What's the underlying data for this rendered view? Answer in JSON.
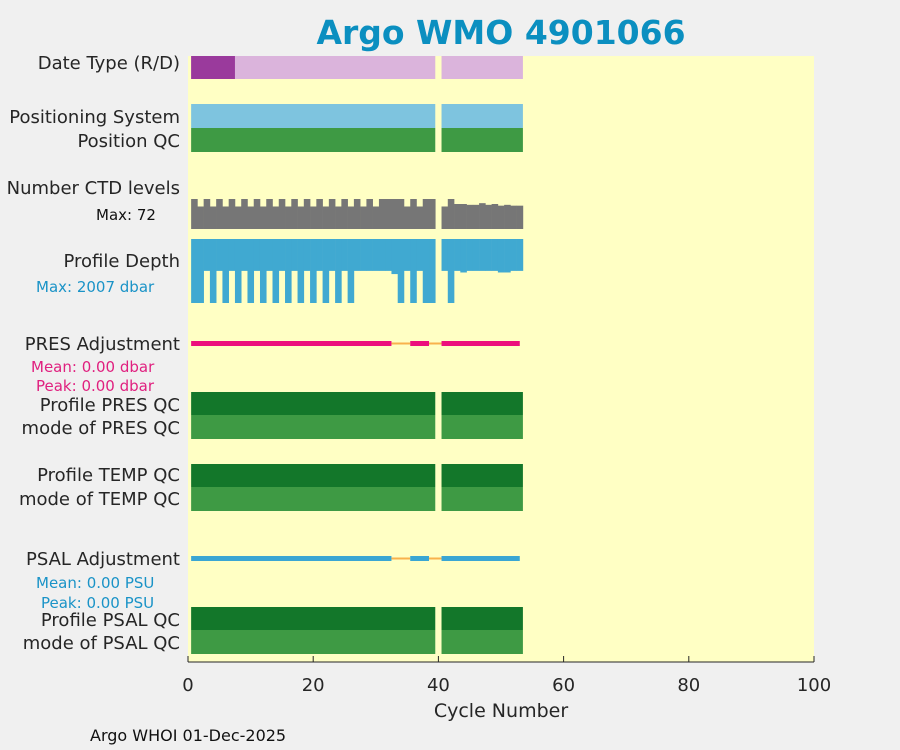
{
  "chart_data": {
    "type": "status-timeline",
    "title": "Argo WMO 4901066",
    "xlabel": "Cycle Number",
    "xlim": [
      0,
      100
    ],
    "xticks": [
      0,
      20,
      40,
      60,
      80,
      100
    ],
    "xtick_labels": [
      "0",
      "20",
      "40",
      "60",
      "80",
      "100"
    ],
    "footer": "Argo WHOI 01-Dec-2025",
    "colors": {
      "title": "#0b8fc0",
      "plot_bg": "#ffffc4",
      "figure_bg": "#f0f0f0",
      "good_qc": "#3e9a44",
      "dark_qc": "#13772a",
      "positioning": "#7ec4df",
      "date_realtime": "#dbb4dc",
      "date_delayed": "#9a3a9c",
      "ctd": "#767676",
      "depth": "#40a9d1",
      "pres_adj": "#ec0f7d",
      "psal_adj": "#3aa6d3",
      "adj_gap": "#f8b24c",
      "pink_text": "#e0207f",
      "blue_text": "#1a93c7",
      "axis": "#262626"
    },
    "cycle_span": [
      0.5,
      53.5
    ],
    "missing_cycles": [
      40
    ],
    "labels": {
      "date_type": "Date Type (R/D)",
      "positioning_system": "Positioning System",
      "position_qc": "Position QC",
      "ctd_levels": "Number CTD levels",
      "ctd_max": "Max: 72",
      "profile_depth": "Profile Depth",
      "depth_max": "Max: 2007 dbar",
      "pres_adjustment": "PRES Adjustment",
      "pres_mean": "Mean: 0.00 dbar",
      "pres_peak": "Peak: 0.00 dbar",
      "profile_pres_qc": "Profile PRES QC",
      "mode_pres_qc": "mode of PRES QC",
      "profile_temp_qc": "Profile TEMP QC",
      "mode_temp_qc": "mode of TEMP QC",
      "psal_adjustment": "PSAL Adjustment",
      "psal_mean": "Mean: 0.00 PSU",
      "psal_peak": "Peak: 0.00 PSU",
      "profile_psal_qc": "Profile PSAL QC",
      "mode_psal_qc": "mode of PSAL QC"
    },
    "date_type": {
      "delayed_mode_cycles": [
        1,
        2,
        3,
        4,
        5,
        6,
        7
      ],
      "realtime_cycles_end": 53
    },
    "ctd_levels": {
      "max": 72,
      "values": [
        72,
        54,
        72,
        54,
        72,
        54,
        72,
        54,
        72,
        54,
        72,
        54,
        72,
        54,
        72,
        54,
        72,
        54,
        72,
        54,
        72,
        54,
        72,
        54,
        72,
        54,
        72,
        54,
        72,
        54,
        72,
        72,
        72,
        72,
        54,
        72,
        54,
        72,
        72,
        null,
        54,
        72,
        60,
        60,
        58,
        58,
        62,
        58,
        60,
        56,
        58,
        56,
        56
      ]
    },
    "profile_depth": {
      "max": 2007,
      "values": [
        2007,
        2007,
        1000,
        2007,
        1000,
        2007,
        1000,
        2007,
        1000,
        2007,
        1000,
        2007,
        1000,
        2007,
        1000,
        2007,
        1000,
        2007,
        1000,
        2007,
        1000,
        2007,
        1000,
        2007,
        1000,
        2007,
        1000,
        1000,
        1000,
        1000,
        1000,
        1000,
        1100,
        2007,
        1000,
        2007,
        1000,
        2007,
        2007,
        null,
        1000,
        2007,
        1000,
        1050,
        1000,
        1000,
        1000,
        1000,
        1000,
        1050,
        1050,
        1000,
        1000
      ]
    },
    "pres_adjustment": {
      "mean": 0.0,
      "peak": 0.0,
      "unit": "dbar",
      "segments": [
        [
          0.5,
          32.5
        ],
        [
          35.5,
          38.5
        ],
        [
          40.5,
          53
        ]
      ],
      "gaps": [
        [
          32.5,
          35.5
        ],
        [
          38.5,
          40.5
        ]
      ]
    },
    "psal_adjustment": {
      "mean": 0.0,
      "peak": 0.0,
      "unit": "PSU",
      "segments": [
        [
          0.5,
          32.5
        ],
        [
          35.5,
          38.5
        ],
        [
          40.5,
          53
        ]
      ],
      "gaps": [
        [
          32.5,
          35.5
        ],
        [
          38.5,
          40.5
        ]
      ]
    }
  }
}
